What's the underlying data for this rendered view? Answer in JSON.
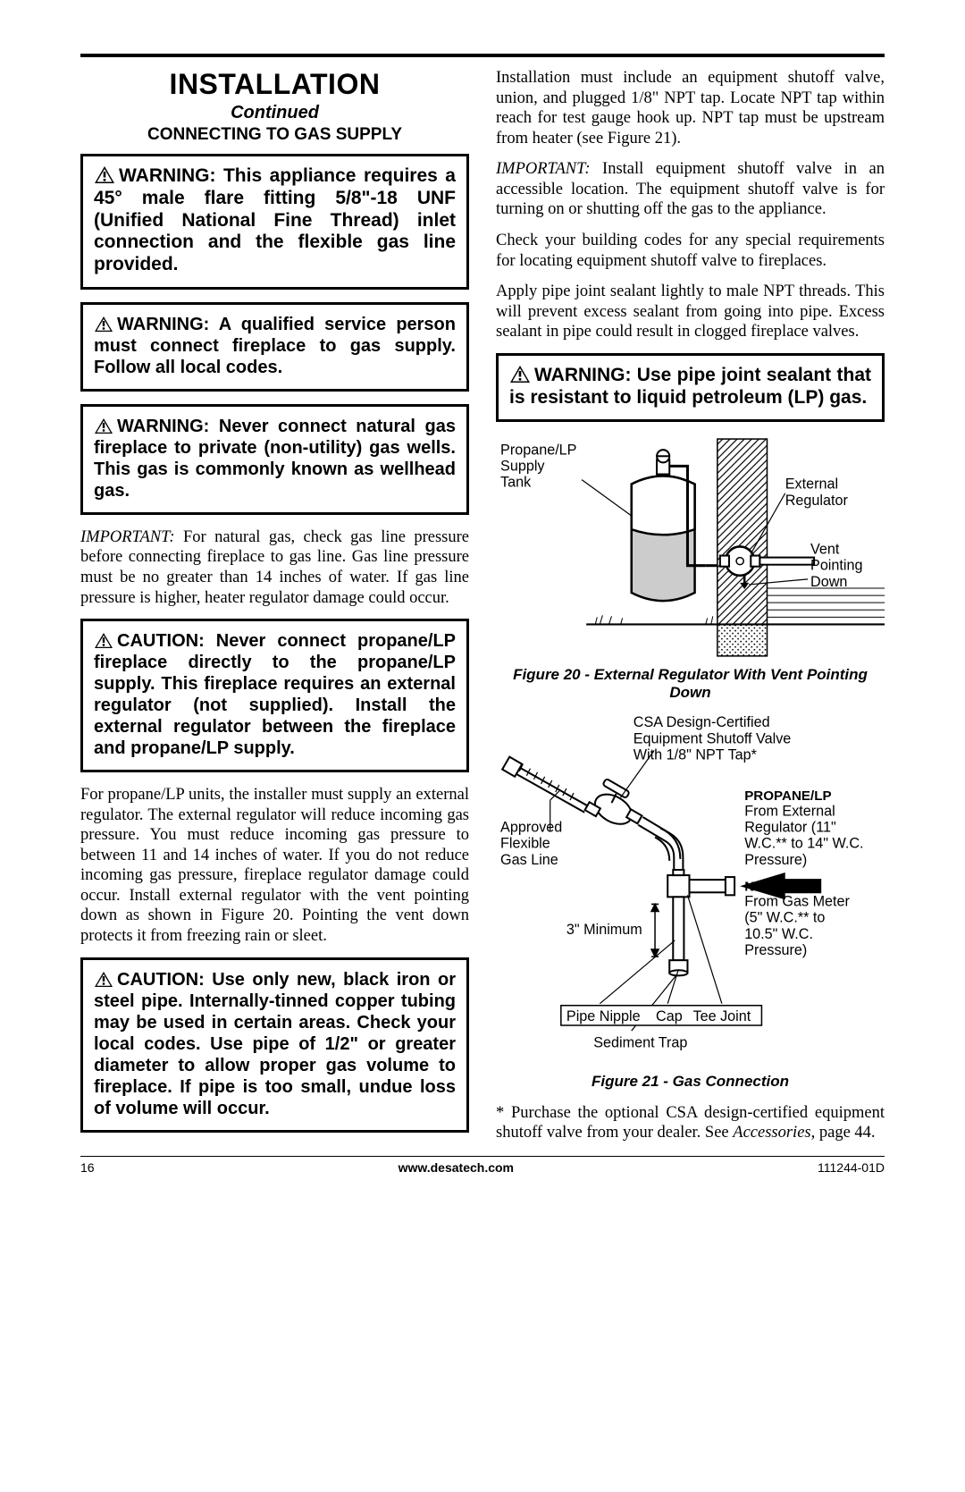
{
  "header": {
    "title": "INSTALLATION",
    "continued": "Continued",
    "subhead": "CONNECTING TO GAS SUPPLY"
  },
  "left": {
    "warn1": "WARNING: This appliance requires a 45° male flare fitting 5/8\"-18 UNF (Unified National Fine Thread) inlet connection and the flexible gas line provided.",
    "warn2": "WARNING: A qualified service person must connect fireplace to gas supply. Follow all local codes.",
    "warn3": "WARNING: Never connect natural gas fireplace to private (non-utility) gas wells. This gas is commonly known as wellhead gas.",
    "important1_lead": "IMPORTANT:",
    "important1_body": " For natural gas, check gas line pressure before connecting fireplace to gas line. Gas line pressure must be no greater than 14 inches of water. If gas line pressure is higher, heater regulator damage could occur.",
    "caution1": "CAUTION: Never connect propane/LP fireplace directly to the propane/LP supply. This fireplace requires an external regulator (not supplied). Install the external regulator between the fireplace and propane/LP supply.",
    "para2": "For propane/LP units, the installer must supply an external regulator. The external regulator will reduce incoming gas pressure. You must reduce incoming gas pressure to between 11 and 14 inches of water. If you do not reduce incoming gas pressure, fireplace regulator damage could occur. Install external regulator with the vent pointing down as shown in Figure 20. Pointing the vent down protects it from freezing rain or sleet.",
    "caution2": "CAUTION: Use only new, black iron or steel pipe. Internally-tinned copper tubing may be used in certain areas. Check your local codes. Use pipe of 1/2\" or greater diameter to allow proper gas volume to fireplace. If pipe is too small, undue loss of volume will occur."
  },
  "right": {
    "para1": "Installation must include an equipment shutoff valve, union, and plugged 1/8\" NPT tap. Locate NPT tap within reach for test gauge hook up. NPT tap must be upstream from heater (see Figure 21).",
    "important2_lead": "IMPORTANT:",
    "important2_body": " Install equipment shutoff valve in an accessible location. The equipment shutoff valve is for turning on or shutting off the gas to the appliance.",
    "para3": "Check your building codes for any special requirements for locating equipment shutoff valve to fireplaces.",
    "para4": "Apply pipe joint sealant lightly to male NPT threads. This will prevent excess sealant from going into pipe. Excess sealant in pipe could result in clogged fireplace valves.",
    "warn4": "WARNING: Use pipe joint sealant that is resistant to liquid petroleum (LP) gas.",
    "fig20": {
      "labels": {
        "tank": "Propane/LP\nSupply\nTank",
        "regulator": "External\nRegulator",
        "vent": "Vent\nPointing\nDown"
      },
      "caption": "Figure 20 - External Regulator With Vent Pointing Down"
    },
    "fig21": {
      "labels": {
        "csa": "CSA Design-Certified\nEquipment Shutoff Valve\nWith 1/8\" NPT Tap*",
        "flex": "Approved\nFlexible\nGas Line",
        "propane_head": "PROPANE/LP",
        "propane_body": "From External\nRegulator (11\"\nW.C.** to 14\" W.C.\nPressure)",
        "natural_head": "NATURAL",
        "natural_body": "From Gas Meter\n(5\" W.C.** to\n10.5\" W.C.\nPressure)",
        "min": "3\" Minimum",
        "nipple": "Pipe Nipple",
        "cap": "Cap",
        "tee": "Tee Joint",
        "sediment": "Sediment Trap"
      },
      "caption": "Figure 21 - Gas Connection"
    },
    "footnote": "* Purchase the optional CSA design-certified equipment shutoff valve from your dealer. See ",
    "footnote_em": "Accessories",
    "footnote_tail": ", page 44."
  },
  "footer": {
    "page": "16",
    "url": "www.desatech.com",
    "doc": "111244-01D"
  },
  "colors": {
    "text": "#000000",
    "bg": "#ffffff",
    "tank_fill": "#cccccc",
    "hatch": "#000000"
  }
}
